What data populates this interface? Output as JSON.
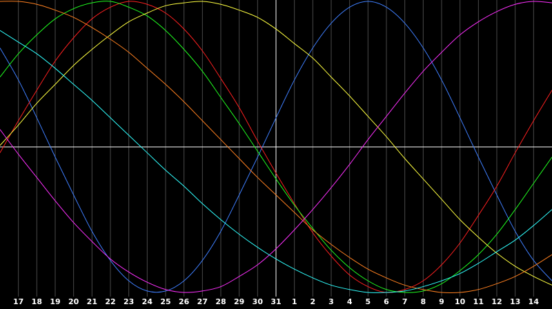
{
  "chart_data": {
    "type": "line",
    "background": "#000000",
    "grid": true,
    "ylim": [
      -1,
      1
    ],
    "categories": [
      null,
      "17",
      "18",
      "19",
      "20",
      "21",
      "22",
      "23",
      "24",
      "25",
      "26",
      "27",
      "28",
      "29",
      "30",
      "31",
      "1",
      "2",
      "3",
      "4",
      "5",
      "6",
      "7",
      "8",
      "9",
      "10",
      "11",
      "12",
      "13",
      "14",
      null
    ],
    "series": [
      {
        "color": "#3f7fff",
        "values": [
          0.68,
          0.46,
          0.2,
          -0.07,
          -0.33,
          -0.58,
          -0.78,
          -0.92,
          -0.99,
          -0.99,
          -0.92,
          -0.78,
          -0.58,
          -0.33,
          -0.07,
          0.2,
          0.46,
          0.68,
          0.85,
          0.96,
          1,
          0.96,
          0.85,
          0.68,
          0.46,
          0.2,
          -0.07,
          -0.33,
          -0.58,
          -0.78,
          -0.92
        ]
      },
      {
        "color": "#ff2020",
        "values": [
          -0.04,
          0.18,
          0.39,
          0.59,
          0.75,
          0.88,
          0.96,
          1,
          0.98,
          0.92,
          0.81,
          0.66,
          0.47,
          0.27,
          0.04,
          -0.18,
          -0.39,
          -0.59,
          -0.75,
          -0.88,
          -0.96,
          -1,
          -0.98,
          -0.92,
          -0.81,
          -0.66,
          -0.47,
          -0.27,
          -0.04,
          0.18,
          0.39
        ]
      },
      {
        "color": "#20ff20",
        "values": [
          0.48,
          0.64,
          0.77,
          0.88,
          0.95,
          0.99,
          1,
          0.96,
          0.9,
          0.8,
          0.67,
          0.52,
          0.34,
          0.16,
          -0.03,
          -0.22,
          -0.4,
          -0.56,
          -0.71,
          -0.83,
          -0.92,
          -0.98,
          -1,
          -0.99,
          -0.94,
          -0.85,
          -0.74,
          -0.6,
          -0.43,
          -0.25,
          -0.07
        ]
      },
      {
        "color": "#ffff40",
        "values": [
          0.01,
          0.15,
          0.3,
          0.43,
          0.56,
          0.67,
          0.77,
          0.86,
          0.92,
          0.97,
          0.99,
          1,
          0.98,
          0.94,
          0.89,
          0.81,
          0.71,
          0.61,
          0.48,
          0.35,
          0.21,
          0.07,
          -0.08,
          -0.22,
          -0.36,
          -0.5,
          -0.62,
          -0.73,
          -0.82,
          -0.89,
          -0.95
        ]
      },
      {
        "color": "#ff8020",
        "values": [
          1,
          1,
          0.98,
          0.94,
          0.89,
          0.82,
          0.74,
          0.65,
          0.54,
          0.43,
          0.31,
          0.18,
          0.05,
          -0.08,
          -0.21,
          -0.33,
          -0.45,
          -0.57,
          -0.67,
          -0.76,
          -0.84,
          -0.9,
          -0.95,
          -0.98,
          -1,
          -1,
          -0.98,
          -0.94,
          -0.89,
          -0.82,
          -0.74
        ]
      },
      {
        "color": "#ff30ff",
        "values": [
          0.12,
          -0.05,
          -0.21,
          -0.37,
          -0.52,
          -0.65,
          -0.77,
          -0.86,
          -0.93,
          -0.98,
          -1,
          -0.99,
          -0.96,
          -0.89,
          -0.81,
          -0.7,
          -0.57,
          -0.43,
          -0.28,
          -0.12,
          0.05,
          0.21,
          0.37,
          0.52,
          0.65,
          0.77,
          0.86,
          0.93,
          0.98,
          1,
          0.99
        ]
      },
      {
        "color": "#30ffff",
        "values": [
          0.8,
          0.72,
          0.64,
          0.54,
          0.43,
          0.32,
          0.2,
          0.08,
          -0.04,
          -0.16,
          -0.27,
          -0.39,
          -0.5,
          -0.6,
          -0.69,
          -0.77,
          -0.84,
          -0.9,
          -0.95,
          -0.98,
          -1,
          -1,
          -0.99,
          -0.96,
          -0.92,
          -0.87,
          -0.8,
          -0.72,
          -0.64,
          -0.54,
          -0.43
        ]
      }
    ]
  }
}
